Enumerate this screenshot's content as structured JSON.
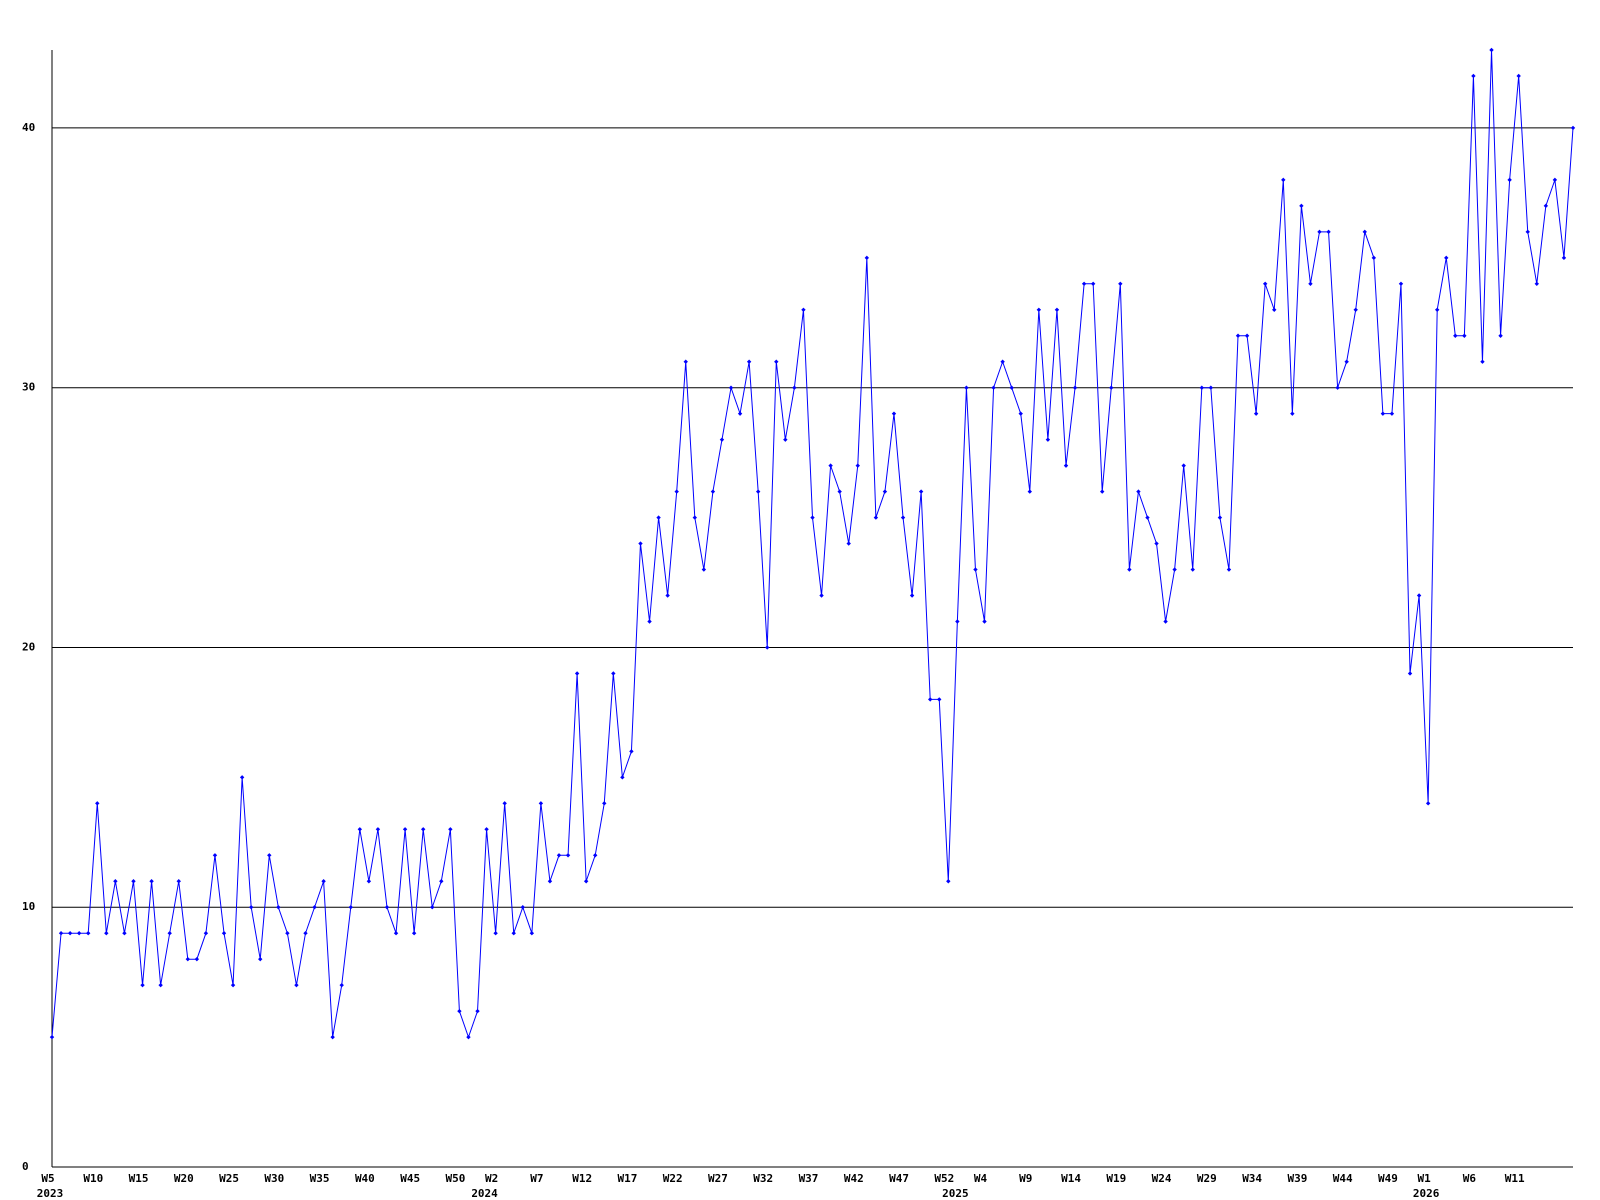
{
  "chart_data": {
    "type": "line",
    "color": "#0000ff",
    "grid": true,
    "ylim": [
      0,
      43
    ],
    "yticks": [
      0,
      10,
      20,
      30,
      40
    ],
    "categories": [
      "W5",
      null,
      null,
      null,
      null,
      "W10",
      null,
      null,
      null,
      null,
      "W15",
      null,
      null,
      null,
      null,
      "W20",
      null,
      null,
      null,
      null,
      "W25",
      null,
      null,
      null,
      null,
      "W30",
      null,
      null,
      null,
      null,
      "W35",
      null,
      null,
      null,
      null,
      "W40",
      null,
      null,
      null,
      null,
      "W45",
      null,
      null,
      null,
      null,
      "W50",
      null,
      null,
      null,
      "W2",
      null,
      null,
      null,
      null,
      "W7",
      null,
      null,
      null,
      null,
      "W12",
      null,
      null,
      null,
      null,
      "W17",
      null,
      null,
      null,
      null,
      "W22",
      null,
      null,
      null,
      null,
      "W27",
      null,
      null,
      null,
      null,
      "W32",
      null,
      null,
      null,
      null,
      "W37",
      null,
      null,
      null,
      null,
      "W42",
      null,
      null,
      null,
      null,
      "W47",
      null,
      null,
      null,
      null,
      "W52",
      null,
      null,
      null,
      "W4",
      null,
      null,
      null,
      null,
      "W9",
      null,
      null,
      null,
      null,
      "W14",
      null,
      null,
      null,
      null,
      "W19",
      null,
      null,
      null,
      null,
      "W24",
      null,
      null,
      null,
      null,
      "W29",
      null,
      null,
      null,
      null,
      "W34",
      null,
      null,
      null,
      null,
      "W39",
      null,
      null,
      null,
      null,
      "W44",
      null,
      null,
      null,
      null,
      "W49",
      null,
      null,
      null,
      "W1",
      null,
      null,
      null,
      null,
      "W6",
      null,
      null,
      null,
      null,
      "W11",
      null,
      null,
      null,
      null,
      null,
      null
    ],
    "year_labels": [
      "2023",
      null,
      null,
      null,
      null,
      null,
      null,
      null,
      null,
      null,
      null,
      null,
      null,
      null,
      null,
      null,
      null,
      null,
      null,
      null,
      null,
      null,
      null,
      null,
      null,
      null,
      null,
      null,
      null,
      null,
      null,
      null,
      null,
      null,
      null,
      null,
      null,
      null,
      null,
      null,
      null,
      null,
      null,
      null,
      null,
      null,
      null,
      null,
      "2024",
      null,
      null,
      null,
      null,
      null,
      null,
      null,
      null,
      null,
      null,
      null,
      null,
      null,
      null,
      null,
      null,
      null,
      null,
      null,
      null,
      null,
      null,
      null,
      null,
      null,
      null,
      null,
      null,
      null,
      null,
      null,
      null,
      null,
      null,
      null,
      null,
      null,
      null,
      null,
      null,
      null,
      null,
      null,
      null,
      null,
      null,
      null,
      null,
      null,
      null,
      null,
      "2025",
      null,
      null,
      null,
      null,
      null,
      null,
      null,
      null,
      null,
      null,
      null,
      null,
      null,
      null,
      null,
      null,
      null,
      null,
      null,
      null,
      null,
      null,
      null,
      null,
      null,
      null,
      null,
      null,
      null,
      null,
      null,
      null,
      null,
      null,
      null,
      null,
      null,
      null,
      null,
      null,
      null,
      null,
      null,
      null,
      null,
      null,
      null,
      null,
      null,
      null,
      null,
      "2026",
      null,
      null,
      null,
      null,
      null,
      null,
      null,
      null,
      null,
      null,
      null,
      null,
      null,
      null,
      null,
      null
    ],
    "values": [
      5,
      9,
      9,
      9,
      9,
      14,
      9,
      11,
      9,
      11,
      7,
      11,
      7,
      9,
      11,
      8,
      8,
      9,
      12,
      9,
      7,
      15,
      10,
      8,
      12,
      10,
      9,
      7,
      9,
      10,
      11,
      5,
      7,
      10,
      13,
      11,
      13,
      10,
      9,
      13,
      9,
      13,
      10,
      11,
      13,
      6,
      5,
      6,
      13,
      9,
      14,
      9,
      10,
      9,
      14,
      11,
      12,
      12,
      19,
      11,
      12,
      14,
      19,
      15,
      16,
      24,
      21,
      25,
      22,
      26,
      31,
      25,
      23,
      26,
      28,
      30,
      29,
      31,
      26,
      20,
      31,
      28,
      30,
      33,
      25,
      22,
      27,
      26,
      24,
      27,
      35,
      25,
      26,
      29,
      25,
      22,
      26,
      18,
      18,
      11,
      21,
      30,
      23,
      21,
      30,
      31,
      30,
      29,
      26,
      33,
      28,
      33,
      27,
      30,
      34,
      34,
      26,
      30,
      34,
      23,
      26,
      25,
      24,
      21,
      23,
      27,
      23,
      30,
      30,
      25,
      23,
      32,
      32,
      29,
      34,
      33,
      38,
      29,
      37,
      34,
      36,
      36,
      30,
      31,
      33,
      36,
      35,
      29,
      29,
      34,
      19,
      22,
      14,
      33,
      35,
      32,
      32,
      42,
      31,
      43,
      32,
      38,
      42,
      36,
      34,
      37,
      38,
      35,
      40
    ]
  }
}
